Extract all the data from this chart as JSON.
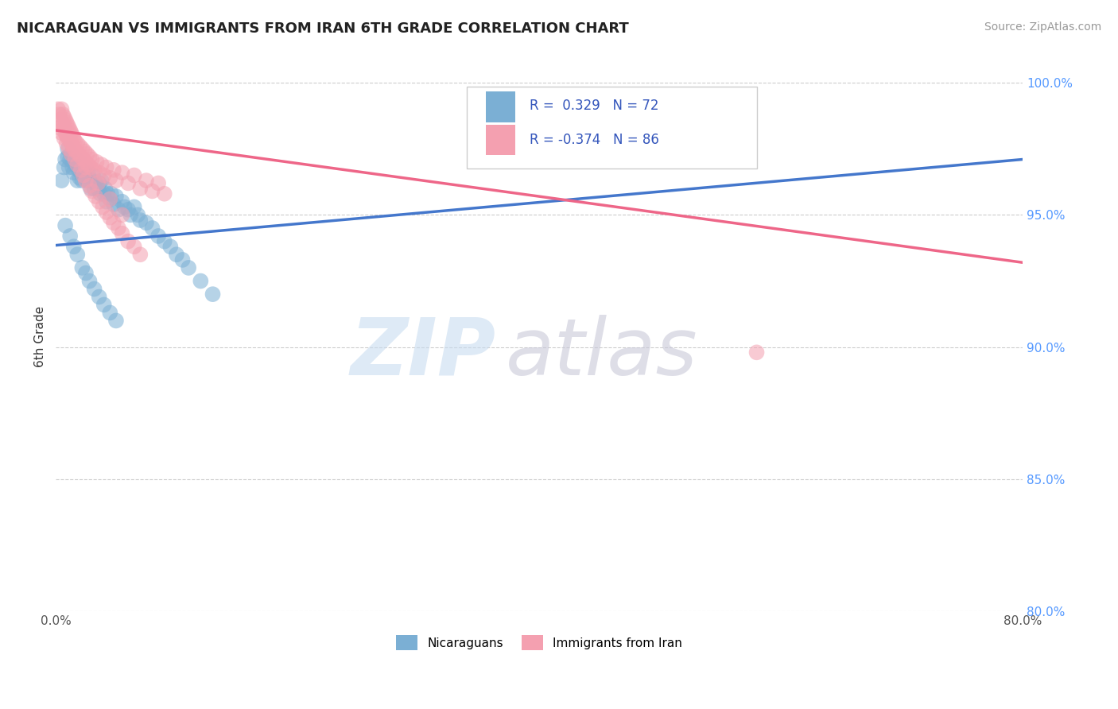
{
  "title": "NICARAGUAN VS IMMIGRANTS FROM IRAN 6TH GRADE CORRELATION CHART",
  "source": "Source: ZipAtlas.com",
  "ylabel": "6th Grade",
  "xlim": [
    0.0,
    0.8
  ],
  "ylim": [
    0.8,
    1.008
  ],
  "yticks": [
    0.8,
    0.85,
    0.9,
    0.95,
    1.0
  ],
  "yticklabels": [
    "80.0%",
    "85.0%",
    "90.0%",
    "95.0%",
    "100.0%"
  ],
  "blue_R": 0.329,
  "blue_N": 72,
  "pink_R": -0.374,
  "pink_N": 86,
  "blue_color": "#7BAFD4",
  "pink_color": "#F4A0B0",
  "blue_line_color": "#4477CC",
  "pink_line_color": "#EE6688",
  "legend_label_blue": "Nicaraguans",
  "legend_label_pink": "Immigrants from Iran",
  "blue_line_x0": 0.0,
  "blue_line_y0": 0.9385,
  "blue_line_x1": 0.8,
  "blue_line_y1": 0.971,
  "pink_line_x0": 0.0,
  "pink_line_y0": 0.982,
  "pink_line_x1": 0.8,
  "pink_line_y1": 0.932,
  "blue_scatter_x": [
    0.005,
    0.007,
    0.008,
    0.01,
    0.01,
    0.011,
    0.012,
    0.013,
    0.014,
    0.015,
    0.015,
    0.016,
    0.017,
    0.018,
    0.019,
    0.02,
    0.02,
    0.021,
    0.022,
    0.023,
    0.024,
    0.025,
    0.026,
    0.027,
    0.028,
    0.029,
    0.03,
    0.031,
    0.032,
    0.033,
    0.035,
    0.036,
    0.037,
    0.038,
    0.04,
    0.041,
    0.042,
    0.043,
    0.045,
    0.046,
    0.048,
    0.05,
    0.052,
    0.055,
    0.057,
    0.06,
    0.062,
    0.065,
    0.068,
    0.07,
    0.075,
    0.08,
    0.085,
    0.09,
    0.095,
    0.1,
    0.105,
    0.11,
    0.12,
    0.13,
    0.008,
    0.012,
    0.015,
    0.018,
    0.022,
    0.025,
    0.028,
    0.032,
    0.036,
    0.04,
    0.045,
    0.05
  ],
  "blue_scatter_y": [
    0.963,
    0.968,
    0.971,
    0.975,
    0.972,
    0.968,
    0.971,
    0.973,
    0.968,
    0.97,
    0.966,
    0.969,
    0.971,
    0.963,
    0.967,
    0.97,
    0.964,
    0.966,
    0.963,
    0.967,
    0.965,
    0.968,
    0.963,
    0.966,
    0.963,
    0.96,
    0.963,
    0.965,
    0.96,
    0.962,
    0.96,
    0.962,
    0.958,
    0.963,
    0.958,
    0.96,
    0.955,
    0.958,
    0.956,
    0.958,
    0.954,
    0.957,
    0.952,
    0.955,
    0.953,
    0.952,
    0.95,
    0.953,
    0.95,
    0.948,
    0.947,
    0.945,
    0.942,
    0.94,
    0.938,
    0.935,
    0.933,
    0.93,
    0.925,
    0.92,
    0.946,
    0.942,
    0.938,
    0.935,
    0.93,
    0.928,
    0.925,
    0.922,
    0.919,
    0.916,
    0.913,
    0.91
  ],
  "pink_scatter_x": [
    0.002,
    0.003,
    0.004,
    0.005,
    0.005,
    0.006,
    0.006,
    0.007,
    0.007,
    0.008,
    0.008,
    0.009,
    0.009,
    0.01,
    0.01,
    0.011,
    0.011,
    0.012,
    0.012,
    0.013,
    0.013,
    0.014,
    0.014,
    0.015,
    0.015,
    0.016,
    0.017,
    0.018,
    0.019,
    0.02,
    0.021,
    0.022,
    0.023,
    0.024,
    0.025,
    0.026,
    0.027,
    0.028,
    0.029,
    0.03,
    0.032,
    0.034,
    0.036,
    0.038,
    0.04,
    0.042,
    0.045,
    0.048,
    0.05,
    0.055,
    0.06,
    0.065,
    0.07,
    0.075,
    0.08,
    0.085,
    0.09,
    0.003,
    0.005,
    0.007,
    0.009,
    0.011,
    0.013,
    0.016,
    0.018,
    0.021,
    0.023,
    0.025,
    0.028,
    0.03,
    0.033,
    0.036,
    0.039,
    0.042,
    0.045,
    0.048,
    0.052,
    0.055,
    0.06,
    0.065,
    0.07,
    0.58,
    0.025,
    0.035,
    0.045,
    0.055
  ],
  "pink_scatter_y": [
    0.99,
    0.988,
    0.986,
    0.99,
    0.985,
    0.988,
    0.984,
    0.987,
    0.983,
    0.986,
    0.981,
    0.985,
    0.98,
    0.984,
    0.979,
    0.983,
    0.979,
    0.982,
    0.978,
    0.981,
    0.977,
    0.98,
    0.976,
    0.979,
    0.975,
    0.978,
    0.974,
    0.977,
    0.973,
    0.976,
    0.972,
    0.975,
    0.971,
    0.974,
    0.97,
    0.973,
    0.969,
    0.972,
    0.968,
    0.971,
    0.967,
    0.97,
    0.966,
    0.969,
    0.965,
    0.968,
    0.964,
    0.967,
    0.963,
    0.966,
    0.962,
    0.965,
    0.96,
    0.963,
    0.959,
    0.962,
    0.958,
    0.983,
    0.981,
    0.979,
    0.977,
    0.975,
    0.973,
    0.971,
    0.969,
    0.967,
    0.965,
    0.963,
    0.961,
    0.959,
    0.957,
    0.955,
    0.953,
    0.951,
    0.949,
    0.947,
    0.945,
    0.943,
    0.94,
    0.938,
    0.935,
    0.898,
    0.968,
    0.962,
    0.956,
    0.95
  ]
}
